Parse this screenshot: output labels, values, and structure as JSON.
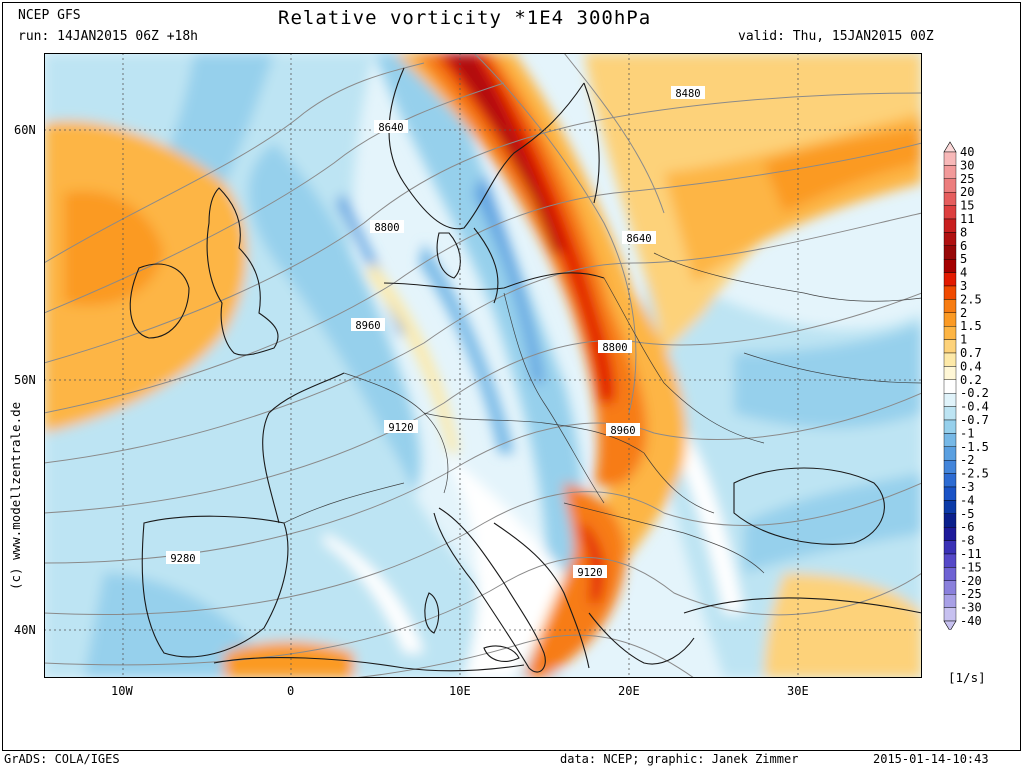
{
  "header": {
    "model": "NCEP GFS",
    "run": "run: 14JAN2015 06Z +18h",
    "title": "Relative vorticity *1E4 300hPa",
    "valid": "valid: Thu, 15JAN2015 00Z"
  },
  "axes": {
    "lat_labels": [
      "60N",
      "50N",
      "40N"
    ],
    "lon_labels": [
      "10W",
      "0",
      "10E",
      "20E",
      "30E"
    ]
  },
  "contour_labels": [
    "8480",
    "8640",
    "8800",
    "8640",
    "8960",
    "8800",
    "9120",
    "8960",
    "9280",
    "9120"
  ],
  "legend": {
    "levels": [
      "40",
      "30",
      "25",
      "20",
      "15",
      "11",
      "8",
      "6",
      "5",
      "4",
      "3",
      "2.5",
      "2",
      "1.5",
      "1",
      "0.7",
      "0.4",
      "0.2",
      "-0.2",
      "-0.4",
      "-0.7",
      "-1",
      "-1.5",
      "-2",
      "-2.5",
      "-3",
      "-4",
      "-5",
      "-6",
      "-8",
      "-11",
      "-15",
      "-20",
      "-25",
      "-30",
      "-40"
    ],
    "colors": [
      "#fcd9d9",
      "#f7b8b8",
      "#f29a9a",
      "#ec7d7d",
      "#e55d5d",
      "#dd3f3f",
      "#c81e1e",
      "#b01010",
      "#980808",
      "#a40000",
      "#e21a00",
      "#f04a00",
      "#f77c12",
      "#fb9a24",
      "#fdb544",
      "#fdd27a",
      "#fde9a8",
      "#fff7d6",
      "#ffffff",
      "#e0f3fa",
      "#bde4f3",
      "#96d0ec",
      "#76b8e6",
      "#5a9fe0",
      "#4385da",
      "#2d6bd2",
      "#1a52c6",
      "#0b3aa8",
      "#0a1f8c",
      "#1d1a9a",
      "#3a31b6",
      "#5548c8",
      "#6e62d4",
      "#8a80dc",
      "#a8a0e6",
      "#c7c1f0"
    ],
    "unit": "[1/s]"
  },
  "watermark": "(c) www.modellzentrale.de",
  "footer": {
    "left": "GrADS: COLA/IGES",
    "center": "data: NCEP; graphic: Janek Zimmer",
    "right": "2015-01-14-10:43"
  }
}
